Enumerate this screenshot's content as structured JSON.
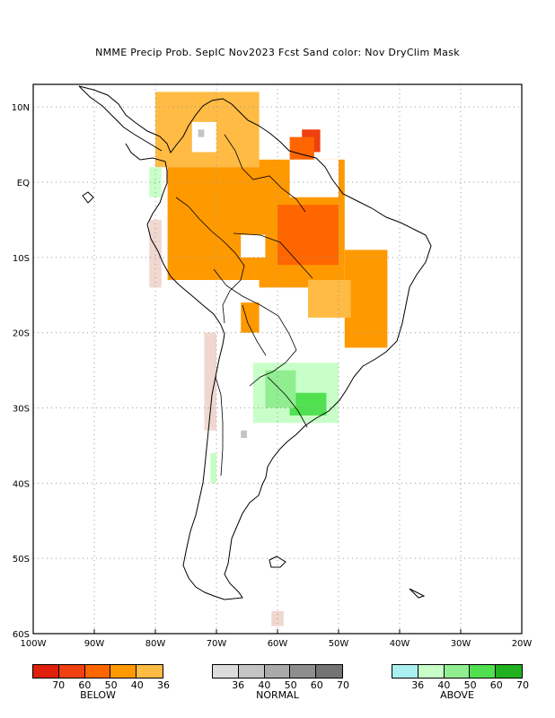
{
  "title": "NMME Precip Prob. SepIC  Nov2023 Fcst  Sand color: Nov DryClim Mask",
  "axes": {
    "lon_ticks": [
      "100W",
      "90W",
      "80W",
      "70W",
      "60W",
      "50W",
      "40W",
      "30W",
      "20W"
    ],
    "lat_ticks": [
      "10N",
      "EQ",
      "10S",
      "20S",
      "30S",
      "40S",
      "50S",
      "60S"
    ]
  },
  "colors": {
    "below": [
      "#e0200c",
      "#f04010",
      "#ff6600",
      "#ff9900",
      "#ffbb44"
    ],
    "normal": [
      "#dcdcdc",
      "#c4c4c4",
      "#aaaaaa",
      "#8e8e8e",
      "#747474"
    ],
    "above": [
      "#aaf0f0",
      "#c8ffc8",
      "#90ee90",
      "#50e050",
      "#20b020"
    ],
    "dryclim": "#f0d8d0"
  },
  "legend": {
    "below": {
      "label": "BELOW",
      "ticks": [
        "70",
        "60",
        "50",
        "40",
        "36"
      ]
    },
    "normal": {
      "label": "NORMAL",
      "ticks": [
        "36",
        "40",
        "50",
        "60",
        "70"
      ]
    },
    "above": {
      "label": "ABOVE",
      "ticks": [
        "36",
        "40",
        "50",
        "60",
        "70"
      ]
    }
  }
}
